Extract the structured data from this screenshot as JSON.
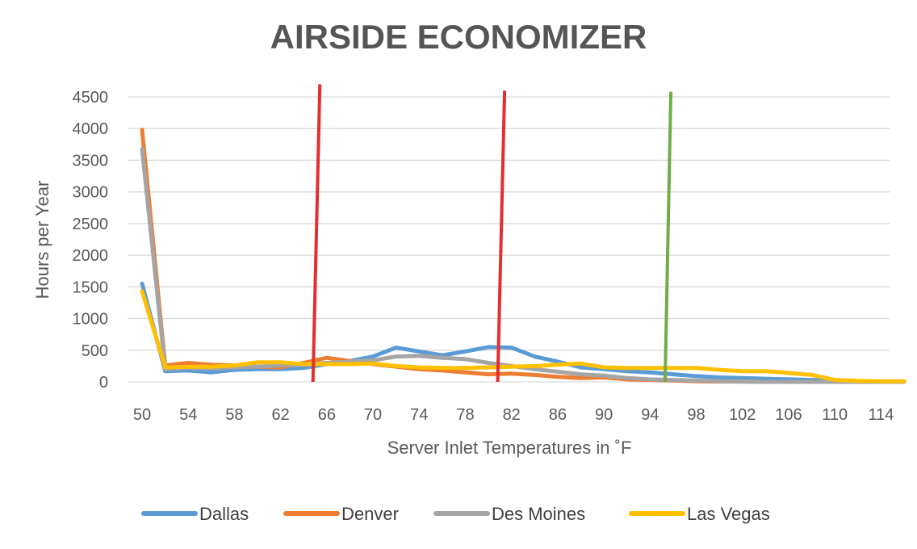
{
  "chart_data": {
    "type": "line",
    "title": "AIRSIDE ECONOMIZER",
    "xlabel": "Server Inlet Temperatures in ˚F",
    "ylabel": "Hours per Year",
    "ylim": [
      0,
      4500
    ],
    "yticks": [
      0,
      500,
      1000,
      1500,
      2000,
      2500,
      3000,
      3500,
      4000,
      4500
    ],
    "ytick_labels": [
      "0",
      "500",
      "1000",
      "1500",
      "2000",
      "2500",
      "3000",
      "3500",
      "4000",
      "4500"
    ],
    "xlim": [
      50,
      116
    ],
    "xticks": [
      50,
      54,
      58,
      62,
      66,
      70,
      74,
      78,
      82,
      86,
      90,
      94,
      98,
      102,
      106,
      110,
      114
    ],
    "xtick_labels": [
      "50",
      "54",
      "58",
      "62",
      "66",
      "70",
      "74",
      "78",
      "82",
      "86",
      "90",
      "94",
      "98",
      "102",
      "106",
      "110",
      "114"
    ],
    "grid": true,
    "legend_position": "bottom",
    "x": [
      50,
      52,
      54,
      56,
      58,
      60,
      62,
      64,
      66,
      68,
      70,
      72,
      74,
      76,
      78,
      80,
      82,
      84,
      86,
      88,
      90,
      92,
      94,
      96,
      98,
      100,
      102,
      104,
      106,
      108,
      110,
      112,
      114,
      116
    ],
    "series": [
      {
        "name": "Dallas",
        "color": "#5B9BD5",
        "values": [
          1550,
          170,
          180,
          150,
          190,
          200,
          200,
          220,
          280,
          330,
          400,
          540,
          480,
          420,
          480,
          550,
          540,
          400,
          320,
          230,
          200,
          170,
          150,
          120,
          90,
          70,
          60,
          50,
          40,
          30,
          20,
          10,
          5,
          0
        ]
      },
      {
        "name": "Denver",
        "color": "#ED7D31",
        "values": [
          3980,
          260,
          300,
          270,
          260,
          240,
          230,
          300,
          380,
          330,
          280,
          240,
          200,
          180,
          150,
          120,
          130,
          110,
          80,
          60,
          70,
          40,
          30,
          20,
          10,
          5,
          5,
          0,
          0,
          0,
          0,
          0,
          0,
          0
        ]
      },
      {
        "name": "Des Moines",
        "color": "#A5A5A5",
        "values": [
          3680,
          200,
          220,
          210,
          230,
          240,
          260,
          270,
          300,
          320,
          340,
          400,
          410,
          380,
          360,
          300,
          250,
          200,
          160,
          120,
          100,
          60,
          40,
          30,
          20,
          10,
          5,
          0,
          0,
          0,
          0,
          0,
          0,
          0
        ]
      },
      {
        "name": "Las Vegas",
        "color": "#FFC000",
        "values": [
          1430,
          230,
          240,
          240,
          260,
          310,
          310,
          280,
          280,
          280,
          290,
          250,
          230,
          220,
          220,
          230,
          240,
          250,
          270,
          290,
          230,
          220,
          220,
          220,
          220,
          190,
          170,
          170,
          140,
          110,
          30,
          15,
          10,
          10
        ]
      }
    ],
    "markers": [
      {
        "color": "#E52E2E",
        "x_top": 65.4,
        "x_bottom": 64.8,
        "y_top": 4700,
        "y_bottom": 0
      },
      {
        "color": "#E52E2E",
        "x_top": 81.4,
        "x_bottom": 80.8,
        "y_top": 4600,
        "y_bottom": 0
      },
      {
        "color": "#70AD47",
        "x_top": 95.8,
        "x_bottom": 95.3,
        "y_top": 4580,
        "y_bottom": 0
      }
    ]
  }
}
